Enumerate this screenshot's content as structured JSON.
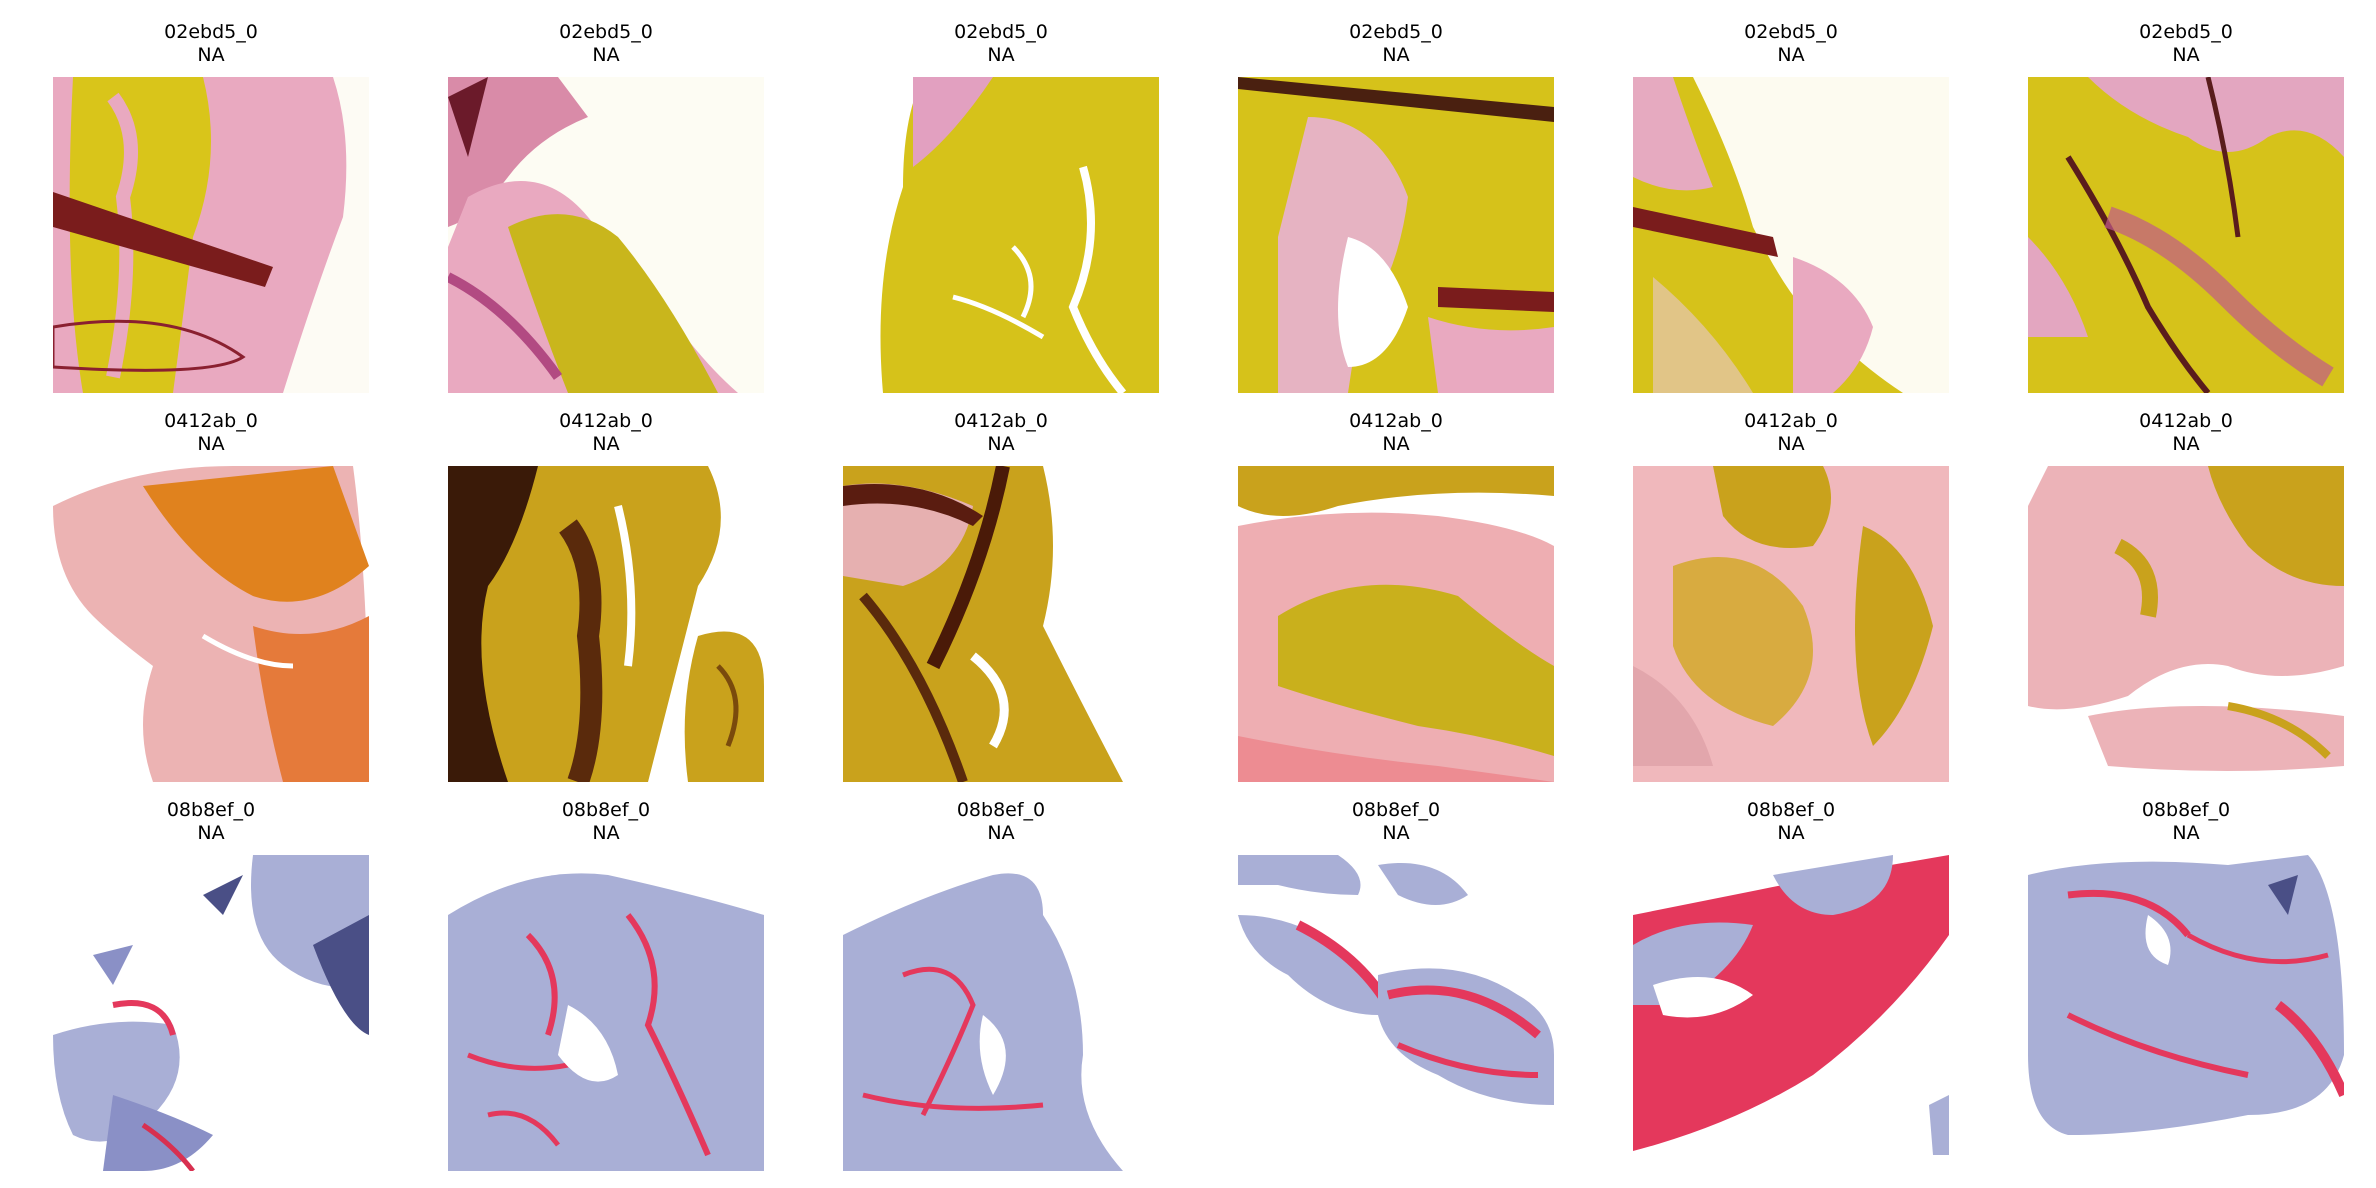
{
  "figure": {
    "rows": [
      {
        "tiles": [
          {
            "id": "02ebd5_0",
            "label": "NA",
            "stain": "yellow-pink"
          },
          {
            "id": "02ebd5_0",
            "label": "NA",
            "stain": "yellow-pink"
          },
          {
            "id": "02ebd5_0",
            "label": "NA",
            "stain": "yellow-pink"
          },
          {
            "id": "02ebd5_0",
            "label": "NA",
            "stain": "yellow-pink"
          },
          {
            "id": "02ebd5_0",
            "label": "NA",
            "stain": "yellow-pink"
          },
          {
            "id": "02ebd5_0",
            "label": "NA",
            "stain": "yellow-pink"
          }
        ]
      },
      {
        "tiles": [
          {
            "id": "0412ab_0",
            "label": "NA",
            "stain": "orange-pink"
          },
          {
            "id": "0412ab_0",
            "label": "NA",
            "stain": "brown-gold"
          },
          {
            "id": "0412ab_0",
            "label": "NA",
            "stain": "brown-gold"
          },
          {
            "id": "0412ab_0",
            "label": "NA",
            "stain": "pink-gold"
          },
          {
            "id": "0412ab_0",
            "label": "NA",
            "stain": "pink-gold"
          },
          {
            "id": "0412ab_0",
            "label": "NA",
            "stain": "pink-gold"
          }
        ]
      },
      {
        "tiles": [
          {
            "id": "08b8ef_0",
            "label": "NA",
            "stain": "blue-red"
          },
          {
            "id": "08b8ef_0",
            "label": "NA",
            "stain": "blue-red"
          },
          {
            "id": "08b8ef_0",
            "label": "NA",
            "stain": "blue-red"
          },
          {
            "id": "08b8ef_0",
            "label": "NA",
            "stain": "blue-red"
          },
          {
            "id": "08b8ef_0",
            "label": "NA",
            "stain": "red-blue"
          },
          {
            "id": "08b8ef_0",
            "label": "NA",
            "stain": "blue-red"
          }
        ]
      }
    ]
  },
  "palette": {
    "yellow": "#d9c51a",
    "pink": "#e9a9c0",
    "dark_red": "#7a1c1c",
    "orange": "#e0821e",
    "gold": "#c9a21c",
    "brown": "#5a2a0c",
    "lavender": "#a9afd6",
    "red": "#e4385c",
    "navy": "#4a4f86"
  }
}
